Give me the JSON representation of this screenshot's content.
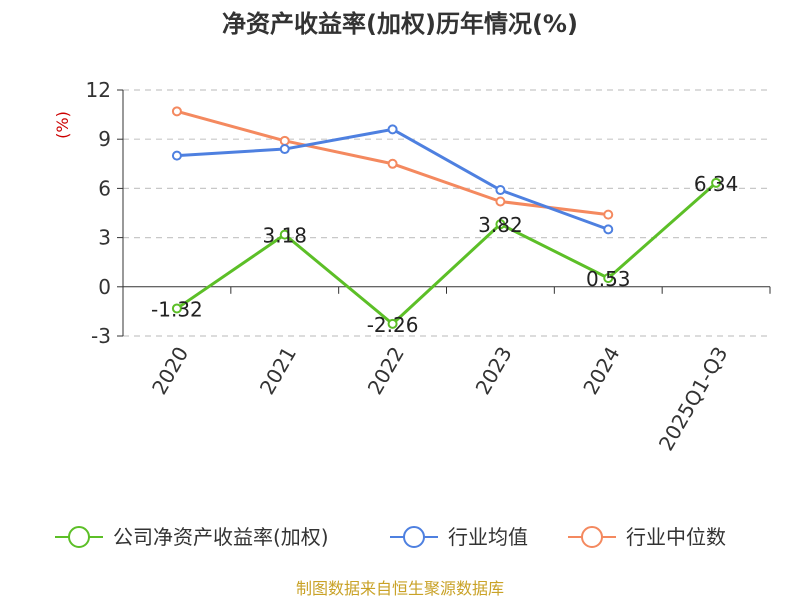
{
  "chart_data": {
    "type": "line",
    "title": "净资产收益率(加权)历年情况(%)",
    "xlabel": "",
    "ylabel": "(%)",
    "categories": [
      "2020",
      "2021",
      "2022",
      "2023",
      "2024",
      "2025Q1-Q3"
    ],
    "ylim": [
      -3,
      12
    ],
    "yticks": [
      "12",
      "9",
      "6",
      "3",
      "0",
      "-3"
    ],
    "grid": true,
    "legend_position": "bottom",
    "series": [
      {
        "name": "公司净资产收益率(加权)",
        "color": "#5cbf27",
        "values": [
          -1.32,
          3.18,
          -2.26,
          3.82,
          0.53,
          6.34
        ],
        "labels": [
          "-1.32",
          "3.18",
          "-2.26",
          "3.82",
          "0.53",
          "6.34"
        ]
      },
      {
        "name": "行业均值",
        "color": "#4e80e0",
        "values": [
          8.0,
          8.4,
          9.6,
          5.9,
          3.5,
          null
        ]
      },
      {
        "name": "行业中位数",
        "color": "#f4895f",
        "values": [
          10.7,
          8.9,
          7.5,
          5.2,
          4.4,
          null
        ]
      }
    ],
    "source": "制图数据来自恒生聚源数据库"
  }
}
